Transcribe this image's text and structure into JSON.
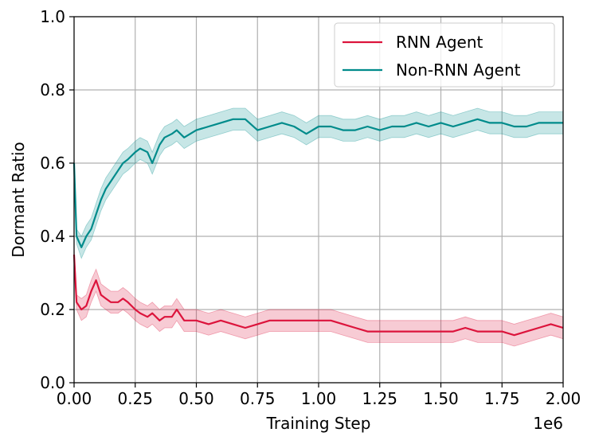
{
  "chart_data": {
    "type": "line",
    "xlabel": "Training Step",
    "ylabel": "Dormant Ratio",
    "x_offset_label": "1e6",
    "xlim": [
      0,
      2.0
    ],
    "ylim": [
      0,
      1.0
    ],
    "x_ticks": [
      "0.00",
      "0.25",
      "0.50",
      "0.75",
      "1.00",
      "1.25",
      "1.50",
      "1.75",
      "2.00"
    ],
    "y_ticks": [
      "0.0",
      "0.2",
      "0.4",
      "0.6",
      "0.8",
      "1.0"
    ],
    "grid": true,
    "legend_position": "top-right",
    "x": [
      0.0,
      0.01,
      0.03,
      0.05,
      0.07,
      0.09,
      0.11,
      0.13,
      0.15,
      0.18,
      0.2,
      0.22,
      0.25,
      0.27,
      0.3,
      0.32,
      0.35,
      0.37,
      0.4,
      0.42,
      0.45,
      0.5,
      0.55,
      0.6,
      0.65,
      0.7,
      0.75,
      0.8,
      0.85,
      0.9,
      0.95,
      1.0,
      1.05,
      1.1,
      1.15,
      1.2,
      1.25,
      1.3,
      1.35,
      1.4,
      1.45,
      1.5,
      1.55,
      1.6,
      1.65,
      1.7,
      1.75,
      1.8,
      1.85,
      1.9,
      1.95,
      2.0
    ],
    "series": [
      {
        "name": "RNN Agent",
        "color": "#dc143c",
        "values": [
          0.35,
          0.22,
          0.2,
          0.21,
          0.25,
          0.28,
          0.24,
          0.23,
          0.22,
          0.22,
          0.23,
          0.22,
          0.2,
          0.19,
          0.18,
          0.19,
          0.17,
          0.18,
          0.18,
          0.2,
          0.17,
          0.17,
          0.16,
          0.17,
          0.16,
          0.15,
          0.16,
          0.17,
          0.17,
          0.17,
          0.17,
          0.17,
          0.17,
          0.16,
          0.15,
          0.14,
          0.14,
          0.14,
          0.14,
          0.14,
          0.14,
          0.14,
          0.14,
          0.15,
          0.14,
          0.14,
          0.14,
          0.13,
          0.14,
          0.15,
          0.16,
          0.15
        ],
        "band": [
          0.02,
          0.02,
          0.03,
          0.03,
          0.03,
          0.03,
          0.03,
          0.03,
          0.03,
          0.03,
          0.03,
          0.03,
          0.03,
          0.03,
          0.03,
          0.03,
          0.03,
          0.03,
          0.03,
          0.03,
          0.03,
          0.03,
          0.03,
          0.03,
          0.03,
          0.03,
          0.03,
          0.03,
          0.03,
          0.03,
          0.03,
          0.03,
          0.03,
          0.03,
          0.03,
          0.03,
          0.03,
          0.03,
          0.03,
          0.03,
          0.03,
          0.03,
          0.03,
          0.03,
          0.03,
          0.03,
          0.03,
          0.03,
          0.03,
          0.03,
          0.03,
          0.03
        ]
      },
      {
        "name": "Non-RNN Agent",
        "color": "#008b8b",
        "values": [
          0.6,
          0.4,
          0.37,
          0.4,
          0.42,
          0.46,
          0.5,
          0.53,
          0.55,
          0.58,
          0.6,
          0.61,
          0.63,
          0.64,
          0.63,
          0.6,
          0.65,
          0.67,
          0.68,
          0.69,
          0.67,
          0.69,
          0.7,
          0.71,
          0.72,
          0.72,
          0.69,
          0.7,
          0.71,
          0.7,
          0.68,
          0.7,
          0.7,
          0.69,
          0.69,
          0.7,
          0.69,
          0.7,
          0.7,
          0.71,
          0.7,
          0.71,
          0.7,
          0.71,
          0.72,
          0.71,
          0.71,
          0.7,
          0.7,
          0.71,
          0.71,
          0.71
        ],
        "band": [
          0.02,
          0.02,
          0.03,
          0.03,
          0.03,
          0.03,
          0.03,
          0.03,
          0.03,
          0.03,
          0.03,
          0.03,
          0.03,
          0.03,
          0.03,
          0.03,
          0.03,
          0.03,
          0.03,
          0.03,
          0.03,
          0.03,
          0.03,
          0.03,
          0.03,
          0.03,
          0.03,
          0.03,
          0.03,
          0.03,
          0.03,
          0.03,
          0.03,
          0.03,
          0.03,
          0.03,
          0.03,
          0.03,
          0.03,
          0.03,
          0.03,
          0.03,
          0.03,
          0.03,
          0.03,
          0.03,
          0.03,
          0.03,
          0.03,
          0.03,
          0.03,
          0.03
        ]
      }
    ]
  }
}
